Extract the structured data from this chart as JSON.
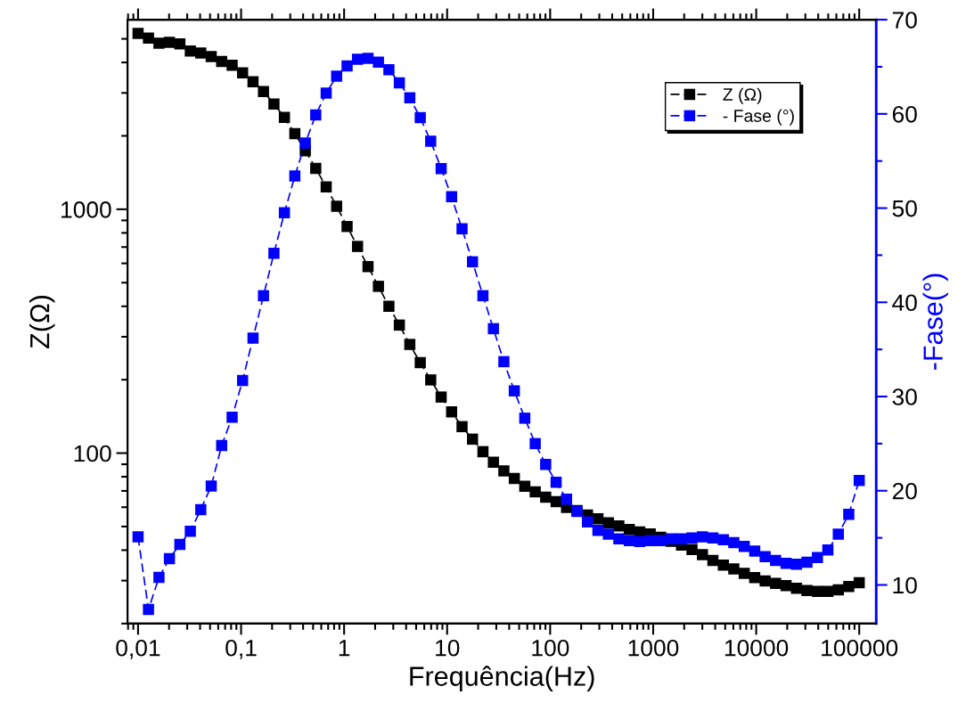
{
  "chart_data": {
    "type": "line",
    "xlabel": "Frequência(Hz)",
    "ylabel": "Z(Ω)",
    "y2label": "-Fase(°)",
    "log": "xy",
    "x": [
      0.01,
      0.01263,
      0.01596,
      0.02016,
      0.02546,
      0.03216,
      0.04062,
      0.05131,
      0.06481,
      0.08186,
      0.1034,
      0.1306,
      0.165,
      0.2084,
      0.2633,
      0.3325,
      0.42,
      0.5305,
      0.6701,
      0.8464,
      1.069,
      1.35,
      1.706,
      2.154,
      2.721,
      3.438,
      4.342,
      5.485,
      6.928,
      8.751,
      11.05,
      13.96,
      17.63,
      22.27,
      28.13,
      35.54,
      44.89,
      56.71,
      71.63,
      90.48,
      114.3,
      144.3,
      182.3,
      230.3,
      290.9,
      367.4,
      464.2,
      586.3,
      740.6,
      935.5,
      1182,
      1493,
      1885,
      2381,
      3008,
      3799,
      4799,
      6062,
      7657,
      9672,
      12220,
      15430,
      19490,
      24620,
      31100,
      39290,
      49620,
      62680,
      79170,
      100000
    ],
    "xlim": [
      0.0079,
      146000
    ],
    "xticks": [
      {
        "value": 0.01,
        "label": "0,01"
      },
      {
        "value": 0.1,
        "label": "0,1"
      },
      1,
      10,
      100,
      1000,
      10000,
      100000
    ],
    "ylim": [
      20,
      5990
    ],
    "yticks": [
      100,
      1000
    ],
    "y2lim": [
      5.9,
      70
    ],
    "y2ticks": [
      10,
      20,
      30,
      40,
      50,
      60,
      70
    ],
    "marker": "square",
    "grid": false,
    "legend": "top right",
    "series": [
      {
        "name": "Z (Ω)",
        "color": "#000000",
        "line_style": "dashed",
        "values": [
          5266,
          5032,
          4797,
          4842,
          4764,
          4452,
          4375,
          4232,
          4036,
          3893,
          3627,
          3334,
          3040,
          2703,
          2383,
          2043,
          1738,
          1472,
          1234,
          1028,
          850,
          704,
          582,
          483,
          400,
          335,
          279,
          235,
          199.6,
          169.8,
          147.6,
          128.4,
          114.1,
          101.4,
          91.7,
          84.5,
          78.7,
          73.2,
          69.4,
          66.0,
          63.2,
          59.9,
          58.2,
          55.7,
          53.8,
          51.8,
          50.3,
          48.6,
          47.5,
          46.6,
          45.2,
          43.5,
          42.0,
          40.2,
          38.3,
          36.3,
          34.7,
          33.5,
          32.1,
          30.9,
          29.9,
          29.2,
          28.6,
          27.9,
          27.3,
          27.1,
          27.1,
          27.5,
          28.4,
          29.4
        ]
      },
      {
        "name": "- Fase (°)",
        "color": "#0000ff",
        "axis": "y2",
        "line_style": "dashed",
        "values": [
          15.1,
          7.4,
          10.8,
          12.8,
          14.3,
          15.7,
          18.0,
          20.5,
          24.8,
          27.8,
          31.7,
          36.2,
          40.7,
          45.2,
          49.5,
          53.4,
          56.9,
          59.9,
          62.2,
          64.0,
          65.1,
          65.8,
          65.9,
          65.5,
          64.7,
          63.3,
          61.7,
          59.6,
          57.1,
          54.2,
          51.2,
          47.8,
          44.3,
          40.7,
          37.2,
          33.7,
          30.6,
          27.7,
          25.0,
          22.8,
          20.9,
          19.1,
          17.8,
          16.7,
          15.8,
          15.4,
          14.9,
          14.7,
          14.6,
          14.7,
          14.7,
          14.9,
          14.9,
          15.0,
          15.1,
          15.0,
          14.8,
          14.5,
          14.1,
          13.6,
          13.0,
          12.6,
          12.3,
          12.2,
          12.4,
          12.9,
          13.7,
          15.4,
          17.5,
          21.1
        ]
      }
    ]
  }
}
